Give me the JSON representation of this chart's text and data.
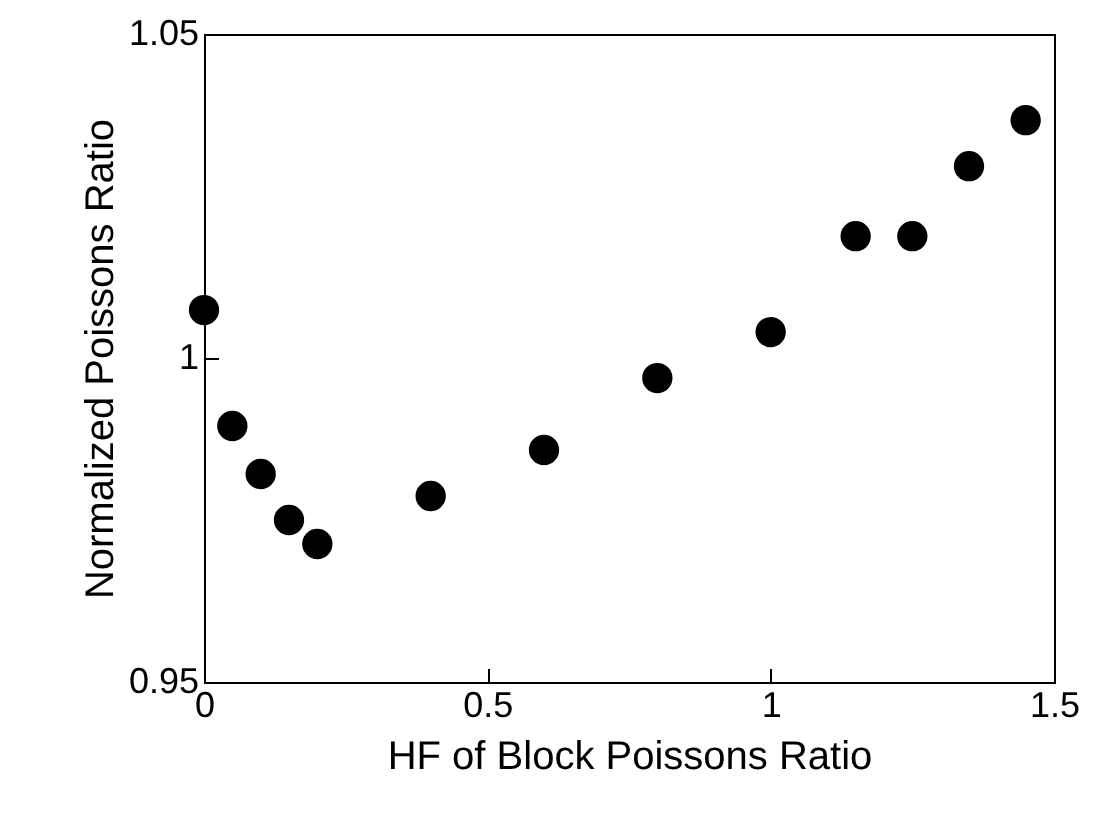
{
  "chart_data": {
    "type": "scatter",
    "xlabel": "HF of Block Poissons Ratio",
    "ylabel": "Normalized Poissons Ratio",
    "x": [
      0,
      0.05,
      0.1,
      0.15,
      0.2,
      0.4,
      0.6,
      0.8,
      1.0,
      1.15,
      1.25,
      1.35,
      1.45
    ],
    "series": [
      {
        "color": "#000000",
        "values": [
          1.0074,
          0.9895,
          0.9821,
          0.975,
          0.9713,
          0.9787,
          0.9858,
          0.9969,
          1.004,
          1.0188,
          1.0188,
          1.0296,
          1.0367
        ]
      }
    ],
    "xlim": [
      0,
      1.5
    ],
    "xticks": [
      0,
      0.5,
      1,
      1.5
    ],
    "ylim": [
      0.95,
      1.05
    ],
    "yticks": [
      0.95,
      1,
      1.05
    ],
    "marker": "circle",
    "grid": false
  }
}
